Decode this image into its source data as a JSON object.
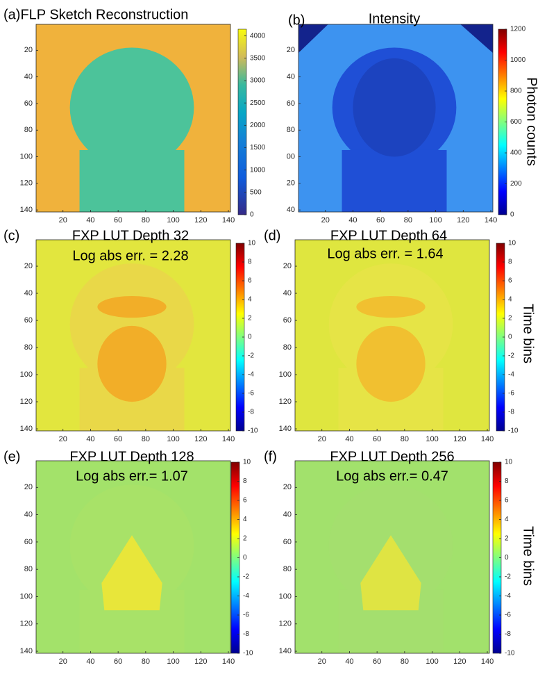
{
  "chart_data": [
    {
      "type": "heatmap",
      "label": "(a)FLP Sketch Reconstruction",
      "xlim": [
        0.5,
        141.5
      ],
      "ylim": [
        0.5,
        141.5
      ],
      "xticks": [
        20,
        40,
        60,
        80,
        100,
        120,
        140
      ],
      "yticks": [
        20,
        40,
        60,
        80,
        100,
        120,
        140
      ],
      "colorbar": {
        "colormap": "parula",
        "lim": [
          0,
          4150
        ],
        "ticks": [
          0,
          500,
          1000,
          1500,
          2000,
          2500,
          3000,
          3500,
          4000
        ]
      }
    },
    {
      "type": "heatmap",
      "label": "(b)",
      "title": "Intensity",
      "xlim": [
        0.5,
        141.5
      ],
      "ylim": [
        0.5,
        141.5
      ],
      "xticks": [
        20,
        40,
        60,
        80,
        100,
        120,
        140
      ],
      "yticks": [
        20,
        40,
        60,
        80,
        {
          "value": 100,
          "label": "00"
        },
        {
          "value": 120,
          "label": "20"
        },
        {
          "value": 140,
          "label": "40"
        }
      ],
      "colorbar": {
        "colormap": "jet",
        "lim": [
          0,
          1200
        ],
        "ticks": [
          0,
          200,
          400,
          600,
          800,
          1000,
          1200
        ],
        "label": "Photon counts"
      }
    },
    {
      "type": "heatmap",
      "label": "(c)",
      "title": "FXP LUT Depth 32",
      "annotation": "Log abs err. = 2.28",
      "xlim": [
        0.5,
        141.5
      ],
      "ylim": [
        0.5,
        141.5
      ],
      "xticks": [
        20,
        40,
        60,
        80,
        100,
        120,
        140
      ],
      "yticks": [
        20,
        40,
        60,
        80,
        100,
        120,
        140
      ],
      "colorbar": {
        "colormap": "jet",
        "lim": [
          -10,
          10
        ],
        "ticks": [
          -10,
          -8,
          -6,
          -4,
          -2,
          0,
          2,
          4,
          6,
          8,
          10
        ]
      }
    },
    {
      "type": "heatmap",
      "label": "(d)",
      "title": "FXP LUT Depth 64",
      "annotation": "Log abs err. = 1.64",
      "xlim": [
        0.5,
        141.5
      ],
      "ylim": [
        0.5,
        141.5
      ],
      "xticks": [
        20,
        40,
        60,
        80,
        100,
        120,
        140
      ],
      "yticks": [
        20,
        40,
        60,
        80,
        100,
        120,
        140
      ],
      "colorbar": {
        "colormap": "jet",
        "lim": [
          -10,
          10
        ],
        "ticks": [
          -10,
          -8,
          -6,
          -4,
          -2,
          0,
          2,
          4,
          6,
          8,
          10
        ],
        "label": "Time bins"
      }
    },
    {
      "type": "heatmap",
      "label": "(e)",
      "title": "FXP LUT Depth 128",
      "annotation": "Log abs err.= 1.07",
      "xlim": [
        0.5,
        141.5
      ],
      "ylim": [
        0.5,
        141.5
      ],
      "xticks": [
        20,
        40,
        60,
        80,
        100,
        120,
        140
      ],
      "yticks": [
        20,
        40,
        60,
        80,
        100,
        120,
        140
      ],
      "colorbar": {
        "colormap": "jet",
        "lim": [
          -10,
          10
        ],
        "ticks": [
          -10,
          -8,
          -6,
          -4,
          -2,
          0,
          2,
          4,
          6,
          8,
          10
        ]
      }
    },
    {
      "type": "heatmap",
      "label": "(f)",
      "title": "FXP LUT Depth 256",
      "annotation": "Log abs err.= 0.47",
      "xlim": [
        0.5,
        141.5
      ],
      "ylim": [
        0.5,
        141.5
      ],
      "xticks": [
        20,
        40,
        60,
        80,
        100,
        120,
        140
      ],
      "yticks": [
        20,
        40,
        60,
        80,
        100,
        120,
        140
      ],
      "colorbar": {
        "colormap": "jet",
        "lim": [
          -10,
          10
        ],
        "ticks": [
          -10,
          -8,
          -6,
          -4,
          -2,
          0,
          2,
          4,
          6,
          8,
          10
        ],
        "label": "Time bins"
      }
    }
  ]
}
